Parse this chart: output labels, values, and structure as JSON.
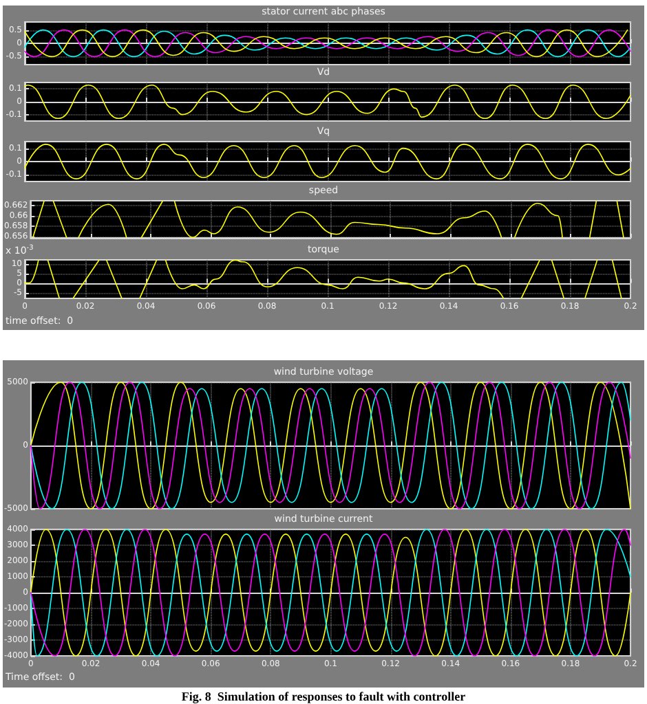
{
  "chart_data": [
    {
      "type": "line",
      "title": "stator current abc phases",
      "xlim": [
        0,
        0.2
      ],
      "xticks": [
        0,
        0.02,
        0.04,
        0.06,
        0.08,
        0.1,
        0.12,
        0.14,
        0.16,
        0.18,
        0.2
      ],
      "ylim": [
        -0.8,
        0.8
      ],
      "yticks": [
        -0.5,
        0,
        0.5
      ],
      "grid": true,
      "tick_labels": "y",
      "marker": "none",
      "line_style": "solid",
      "series": [
        {
          "color": "#00ffff",
          "x": [
            0,
            0.006,
            0.016,
            0.026,
            0.036,
            0.046,
            0.056,
            0.066,
            0.076,
            0.086,
            0.096,
            0.106,
            0.116,
            0.126,
            0.136,
            0.146,
            0.156,
            0.166,
            0.176,
            0.186,
            0.196,
            0.2
          ],
          "values": [
            -0.15,
            0.5,
            -0.5,
            0.5,
            -0.5,
            0.45,
            -0.4,
            0.3,
            -0.25,
            0.2,
            -0.2,
            0.2,
            -0.2,
            0.2,
            -0.25,
            0.3,
            -0.4,
            0.5,
            -0.5,
            0.5,
            -0.5,
            -0.15
          ]
        },
        {
          "color": "#ff00ff",
          "x": [
            0,
            0.003,
            0.013,
            0.023,
            0.033,
            0.043,
            0.053,
            0.063,
            0.073,
            0.083,
            0.093,
            0.103,
            0.113,
            0.123,
            0.133,
            0.143,
            0.153,
            0.163,
            0.173,
            0.183,
            0.193,
            0.2
          ],
          "values": [
            -0.3,
            -0.5,
            0.5,
            -0.5,
            0.5,
            -0.5,
            0.4,
            -0.35,
            0.25,
            -0.2,
            0.2,
            -0.2,
            0.2,
            -0.2,
            0.25,
            -0.3,
            0.4,
            -0.45,
            0.5,
            -0.5,
            0.5,
            -0.3
          ]
        },
        {
          "color": "#ffff00",
          "x": [
            0,
            0.009,
            0.019,
            0.029,
            0.039,
            0.049,
            0.059,
            0.069,
            0.079,
            0.089,
            0.099,
            0.109,
            0.119,
            0.129,
            0.139,
            0.149,
            0.159,
            0.169,
            0.179,
            0.189,
            0.199
          ],
          "values": [
            0.45,
            -0.5,
            0.5,
            -0.5,
            0.5,
            -0.45,
            0.4,
            -0.3,
            0.25,
            -0.2,
            0.2,
            -0.2,
            0.2,
            -0.2,
            0.25,
            -0.35,
            0.4,
            -0.5,
            0.5,
            -0.5,
            0.5
          ]
        }
      ]
    },
    {
      "type": "line",
      "title": "Vd",
      "xlim": [
        0,
        0.2
      ],
      "xticks": [
        0,
        0.02,
        0.04,
        0.06,
        0.08,
        0.1,
        0.12,
        0.14,
        0.16,
        0.18,
        0.2
      ],
      "ylim": [
        -0.15,
        0.15
      ],
      "yticks": [
        -0.1,
        0,
        0.1
      ],
      "grid": true,
      "tick_labels": "y",
      "marker": "none",
      "line_style": "solid",
      "series": [
        {
          "color": "#ffff00",
          "x": [
            0,
            0.001,
            0.011,
            0.021,
            0.031,
            0.042,
            0.049,
            0.052,
            0.062,
            0.073,
            0.083,
            0.093,
            0.103,
            0.113,
            0.122,
            0.125,
            0.129,
            0.131,
            0.142,
            0.152,
            0.161,
            0.172,
            0.181,
            0.192,
            0.2
          ],
          "values": [
            0.12,
            0.13,
            -0.13,
            0.13,
            -0.13,
            0.13,
            -0.05,
            -0.1,
            0.08,
            -0.08,
            0.08,
            -0.1,
            0.08,
            -0.09,
            0.1,
            0.08,
            -0.05,
            -0.12,
            0.13,
            -0.13,
            0.13,
            -0.13,
            0.13,
            -0.13,
            0.05
          ]
        }
      ]
    },
    {
      "type": "line",
      "title": "Vq",
      "xlim": [
        0,
        0.2
      ],
      "xticks": [
        0,
        0.02,
        0.04,
        0.06,
        0.08,
        0.1,
        0.12,
        0.14,
        0.16,
        0.18,
        0.2
      ],
      "ylim": [
        -0.15,
        0.15
      ],
      "yticks": [
        -0.1,
        0,
        0.1
      ],
      "grid": true,
      "tick_labels": "y",
      "marker": "none",
      "line_style": "solid",
      "series": [
        {
          "color": "#ffff00",
          "x": [
            0,
            0.007,
            0.017,
            0.027,
            0.037,
            0.046,
            0.051,
            0.059,
            0.069,
            0.079,
            0.089,
            0.098,
            0.109,
            0.119,
            0.125,
            0.136,
            0.145,
            0.157,
            0.166,
            0.177,
            0.186,
            0.196,
            0.2
          ],
          "values": [
            -0.05,
            0.13,
            -0.13,
            0.13,
            -0.13,
            0.13,
            0.05,
            -0.12,
            0.12,
            -0.12,
            0.12,
            -0.12,
            0.12,
            -0.08,
            0.1,
            -0.13,
            0.13,
            -0.13,
            0.13,
            -0.13,
            0.13,
            -0.1,
            -0.05
          ]
        }
      ]
    },
    {
      "type": "line",
      "title": "speed",
      "xlim": [
        0,
        0.2
      ],
      "xticks": [
        0,
        0.02,
        0.04,
        0.06,
        0.08,
        0.1,
        0.12,
        0.14,
        0.16,
        0.18,
        0.2
      ],
      "ylim": [
        0.6557,
        0.6629
      ],
      "yticks": [
        0.656,
        0.658,
        0.66,
        0.662
      ],
      "grid": true,
      "tick_labels": "y",
      "marker": "none",
      "line_style": "solid",
      "series": [
        {
          "color": "#ffff00",
          "x": [
            0.0008,
            0.0045,
            0.006,
            0.0076,
            0.012,
            0.014,
            0.016,
            0.026,
            0.032,
            0.0345,
            0.037,
            0.044,
            0.046,
            0.048,
            0.054,
            0.058,
            0.061,
            0.069,
            0.0795,
            0.09,
            0.102,
            0.108,
            0.116,
            0.125,
            0.1356,
            0.1447,
            0.1515,
            0.157,
            0.159,
            0.1614,
            0.169,
            0.1758,
            0.1773,
            0.182,
            0.1864,
            0.1886,
            0.192,
            0.1955,
            0.1977
          ],
          "values": [
            0.6558,
            0.6628,
            null,
            0.6628,
            0.6558,
            null,
            0.6558,
            0.6622,
            0.6558,
            null,
            0.6558,
            0.6628,
            null,
            0.6628,
            0.6558,
            0.6572,
            0.6565,
            0.6617,
            0.6568,
            0.6607,
            0.6564,
            0.6587,
            0.6583,
            0.6576,
            0.6565,
            0.6596,
            0.6609,
            0.6558,
            null,
            0.6558,
            0.6624,
            0.66,
            0.6558,
            null,
            0.6558,
            0.6628,
            null,
            0.6628,
            0.6558
          ]
        }
      ]
    },
    {
      "type": "line",
      "title": "torque",
      "ylabel": "x 10$^{-3}$",
      "annotations": [
        "time offset:  0"
      ],
      "xlim": [
        0,
        0.2
      ],
      "xticks": [
        0,
        0.02,
        0.04,
        0.06,
        0.08,
        0.1,
        0.12,
        0.14,
        0.16,
        0.18,
        0.2
      ],
      "ylim": [
        -8,
        12
      ],
      "yticks": [
        -5,
        0,
        5,
        10
      ],
      "grid": true,
      "marker": "none",
      "line_style": "solid",
      "series": [
        {
          "color": "#ffff00",
          "x": [
            0,
            0.0015,
            0.0045,
            0.006,
            0.0076,
            0.0114,
            0.014,
            0.016,
            0.0245,
            0.026,
            0.027,
            0.032,
            0.035,
            0.038,
            0.0435,
            0.045,
            0.0465,
            0.052,
            0.056,
            0.059,
            0.063,
            0.0695,
            0.072,
            0.08,
            0.09,
            0.1,
            0.105,
            0.11,
            0.117,
            0.12,
            0.125,
            0.132,
            0.14,
            0.145,
            0.15,
            0.155,
            0.158,
            0.161,
            0.164,
            0.17,
            0.172,
            0.174,
            0.178,
            0.181,
            0.185,
            0.189,
            0.1915,
            0.194,
            0.197
          ],
          "values": [
            0,
            0,
            11.8,
            null,
            11.8,
            -7.8,
            null,
            -7.8,
            11.8,
            null,
            11.8,
            -7.8,
            null,
            -7.8,
            11.8,
            null,
            11.8,
            -3,
            -1,
            -3,
            2,
            11.8,
            11,
            -2,
            8,
            -1,
            -3,
            3,
            1,
            2,
            0,
            -3,
            5,
            9,
            -1,
            -3,
            -7.8,
            null,
            -7.8,
            11.8,
            null,
            11.8,
            -7.8,
            null,
            -7.8,
            11.8,
            null,
            11.8,
            -7.8
          ]
        }
      ]
    },
    {
      "type": "line",
      "title": "wind turbine voltage",
      "xlim": [
        0,
        0.2
      ],
      "xticks": [
        0,
        0.02,
        0.04,
        0.06,
        0.08,
        0.1,
        0.12,
        0.14,
        0.16,
        0.18,
        0.2
      ],
      "ylim": [
        -5000,
        5000
      ],
      "yticks": [
        -5000,
        0,
        5000
      ],
      "grid": true,
      "tick_labels": "y",
      "marker": "none",
      "line_style": "solid",
      "series": [
        {
          "color": "#ffff00",
          "x": [
            0,
            0.01,
            0.02,
            0.03,
            0.04,
            0.05,
            0.06,
            0.07,
            0.08,
            0.09,
            0.1,
            0.11,
            0.12,
            0.13,
            0.14,
            0.15,
            0.16,
            0.17,
            0.18,
            0.19,
            0.2
          ],
          "values": [
            0,
            5000,
            -5000,
            5000,
            -5000,
            5000,
            -4500,
            4500,
            -4500,
            4500,
            -4500,
            4500,
            -4500,
            5000,
            -5000,
            5000,
            -5000,
            5000,
            -5000,
            5000,
            -5000
          ]
        },
        {
          "color": "#00ffff",
          "x": [
            0,
            0.007,
            0.017,
            0.027,
            0.037,
            0.047,
            0.057,
            0.067,
            0.077,
            0.087,
            0.097,
            0.107,
            0.117,
            0.127,
            0.137,
            0.147,
            0.157,
            0.167,
            0.177,
            0.187,
            0.197,
            0.2
          ],
          "values": [
            0,
            -5000,
            5000,
            -5000,
            5000,
            -5000,
            4500,
            -4500,
            4500,
            -4500,
            4500,
            -4500,
            4500,
            -4500,
            5000,
            -5000,
            5000,
            -5000,
            5000,
            -5000,
            5000,
            2000
          ]
        },
        {
          "color": "#ff00ff",
          "x": [
            0,
            0.003,
            0.013,
            0.023,
            0.033,
            0.043,
            0.053,
            0.063,
            0.073,
            0.083,
            0.093,
            0.103,
            0.113,
            0.123,
            0.133,
            0.143,
            0.153,
            0.163,
            0.173,
            0.183,
            0.193,
            0.2
          ],
          "values": [
            0,
            -5000,
            5000,
            -5000,
            5000,
            -5000,
            4500,
            -4500,
            4500,
            -4500,
            4500,
            -4500,
            4500,
            -4500,
            5000,
            -5000,
            5000,
            -5000,
            5000,
            -5000,
            5000,
            -1000
          ]
        }
      ]
    },
    {
      "type": "line",
      "title": "wind turbine current",
      "annotations": [
        "Time offset:  0",
        "Fig. 8  Simulation of responses to fault with controller"
      ],
      "xlim": [
        0,
        0.2
      ],
      "xticks": [
        0,
        0.02,
        0.04,
        0.06,
        0.08,
        0.1,
        0.12,
        0.14,
        0.16,
        0.18,
        0.2
      ],
      "ylim": [
        -4000,
        4000
      ],
      "yticks": [
        -4000,
        -3000,
        -2000,
        -1000,
        0,
        1000,
        2000,
        3000,
        4000
      ],
      "grid": true,
      "marker": "none",
      "line_style": "solid",
      "series": [
        {
          "color": "#ffff00",
          "x": [
            0,
            0.005,
            0.015,
            0.025,
            0.035,
            0.045,
            0.055,
            0.065,
            0.075,
            0.085,
            0.095,
            0.105,
            0.115,
            0.125,
            0.135,
            0.145,
            0.155,
            0.165,
            0.175,
            0.185,
            0.195,
            0.2
          ],
          "values": [
            0,
            4000,
            -4000,
            4000,
            -4000,
            4000,
            -3700,
            3700,
            -3700,
            3700,
            -3700,
            3700,
            -3700,
            3500,
            -4000,
            4000,
            -4000,
            4000,
            -4000,
            4000,
            -4000,
            0
          ]
        },
        {
          "color": "#00ffff",
          "x": [
            0,
            0.002,
            0.012,
            0.022,
            0.032,
            0.042,
            0.052,
            0.062,
            0.072,
            0.082,
            0.092,
            0.102,
            0.112,
            0.122,
            0.132,
            0.142,
            0.152,
            0.162,
            0.172,
            0.182,
            0.192,
            0.2
          ],
          "values": [
            0,
            -4000,
            4000,
            -4000,
            4000,
            -4000,
            3700,
            -3700,
            3700,
            -3700,
            3700,
            -3700,
            3700,
            -3700,
            4000,
            -4000,
            4000,
            -4000,
            4000,
            -4000,
            4000,
            1000
          ]
        },
        {
          "color": "#ff00ff",
          "x": [
            0,
            0.008,
            0.018,
            0.028,
            0.038,
            0.048,
            0.058,
            0.068,
            0.078,
            0.088,
            0.098,
            0.108,
            0.118,
            0.128,
            0.138,
            0.148,
            0.158,
            0.168,
            0.178,
            0.188,
            0.198,
            0.2
          ],
          "values": [
            0,
            -4000,
            4000,
            -4000,
            4000,
            -4000,
            3700,
            -3700,
            3700,
            -3700,
            3700,
            -3700,
            3700,
            -4000,
            4000,
            -4000,
            4000,
            -4000,
            4000,
            -4000,
            4000,
            3000
          ]
        }
      ]
    }
  ]
}
